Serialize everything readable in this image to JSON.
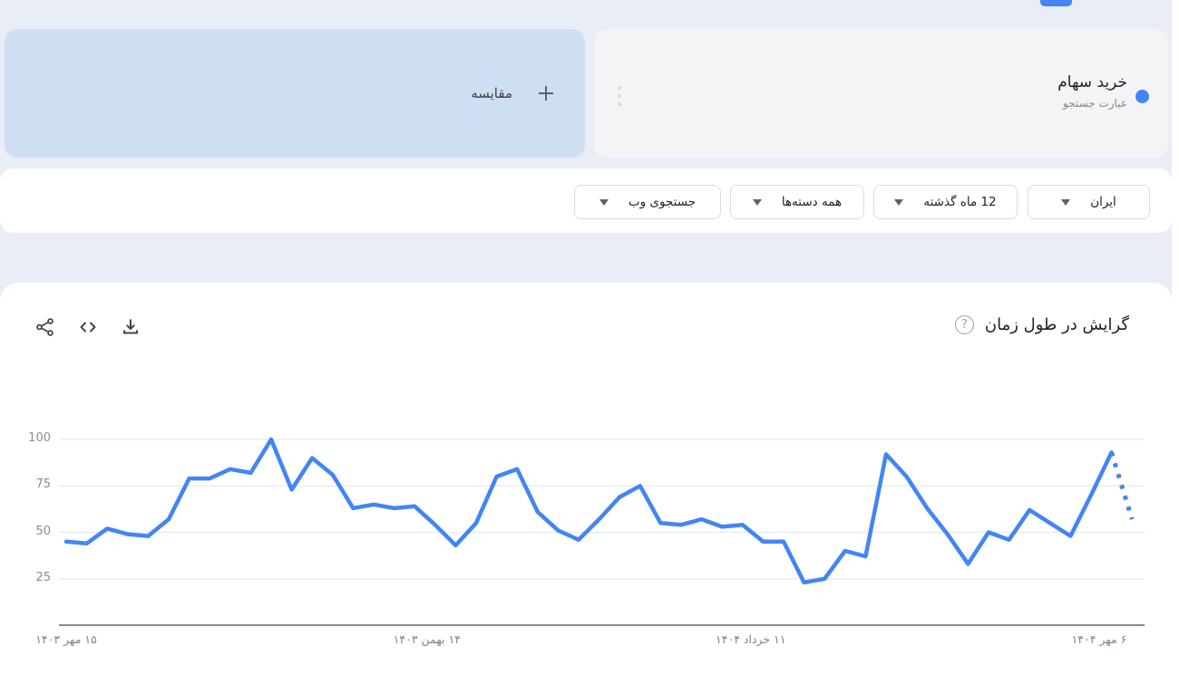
{
  "app": {
    "accent_color": "#4285f4",
    "active_tab_indicator_color": "#4285f4"
  },
  "compare_card": {
    "label": "مقایسه",
    "plus_icon": "plus-icon"
  },
  "term_card": {
    "title": "خرید سهام",
    "subtitle": "عبارت جستجو",
    "dot_color": "#4285f4",
    "menu_icon": "kebab-vertical-icon"
  },
  "filters": {
    "region": "ایران",
    "time_range": "12 ماه گذشته",
    "category": "همه دسته‌ها",
    "search_type": "جستجوی وب"
  },
  "chart_header": {
    "title": "گرایش در طول زمان",
    "help_glyph": "?",
    "tools": [
      "share-icon",
      "embed-code-icon",
      "download-icon"
    ]
  },
  "chart_data": {
    "type": "line",
    "title": "گرایش در طول زمان",
    "legend": "none",
    "grid": true,
    "ylim": [
      0,
      100
    ],
    "yticks": [
      25,
      50,
      75,
      100
    ],
    "line_color": "#4285f4",
    "last_segment_style": "dotted",
    "series": [
      {
        "name": "خرید سهام",
        "values": [
          45,
          44,
          52,
          49,
          48,
          57,
          79,
          79,
          84,
          82,
          100,
          73,
          90,
          81,
          63,
          65,
          63,
          64,
          54,
          43,
          55,
          80,
          84,
          61,
          51,
          46,
          57,
          69,
          75,
          55,
          54,
          57,
          53,
          54,
          45,
          45,
          23,
          25,
          40,
          37,
          92,
          80,
          63,
          49,
          33,
          50,
          46,
          62,
          55,
          48,
          70,
          93,
          57
        ]
      }
    ],
    "xticks": [
      {
        "label": "۱۵ مهر ۱۴۰۳",
        "index": 0
      },
      {
        "label": "۱۴ بهمن ۱۴۰۳",
        "index": 17.6
      },
      {
        "label": "۱۱ خرداد ۱۴۰۴",
        "index": 33.4
      },
      {
        "label": "۶ مهر ۱۴۰۴",
        "index": 50.4
      }
    ]
  }
}
